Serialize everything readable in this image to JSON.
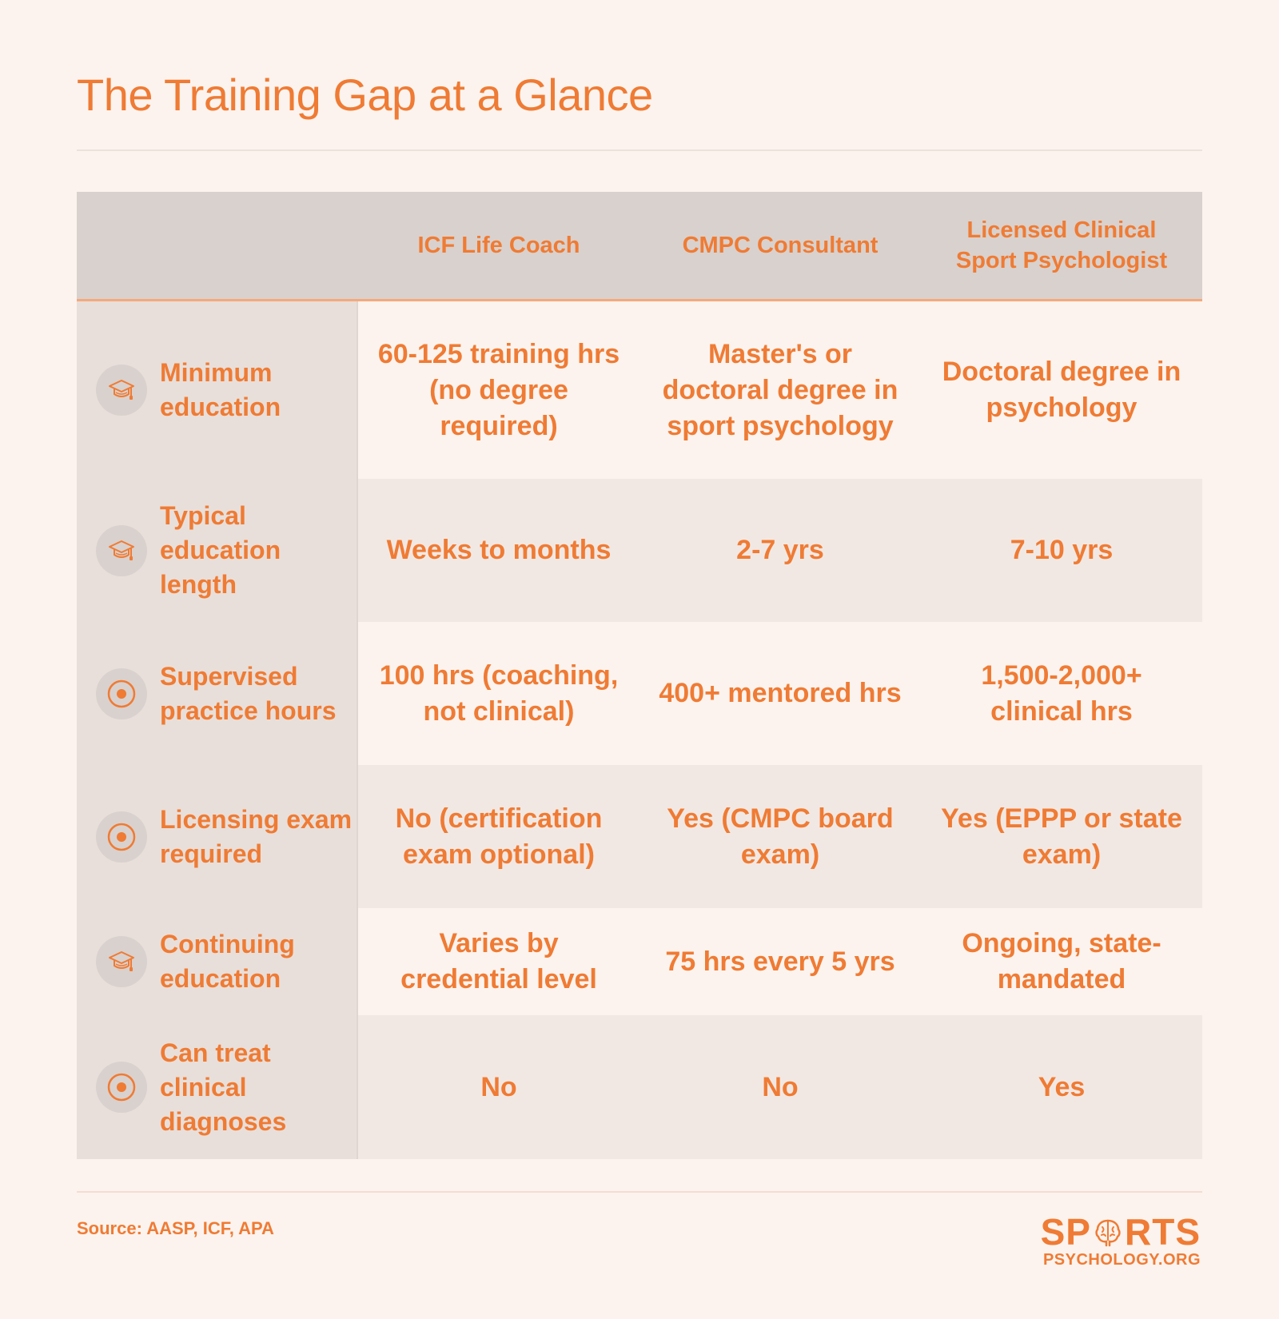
{
  "title": "The Training Gap at a Glance",
  "header": {
    "blank": "",
    "col1": "ICF Life Coach",
    "col2": "CMPC Consultant",
    "col3": "Licensed Clinical Sport Psychologist"
  },
  "rows": [
    {
      "icon": "graduation-cap-icon",
      "label": "Minimum education",
      "c1": "60-125 training hrs (no degree required)",
      "c2": "Master's or doctoral degree in sport psychology",
      "c3": "Doctoral degree in psychology"
    },
    {
      "icon": "graduation-cap-icon",
      "label": "Typical education length",
      "c1": "Weeks to months",
      "c2": "2-7 yrs",
      "c3": "7-10 yrs"
    },
    {
      "icon": "target-icon",
      "label": "Supervised practice hours",
      "c1": "100 hrs (coaching, not clinical)",
      "c2": "400+ mentored hrs",
      "c3": "1,500-2,000+ clinical hrs"
    },
    {
      "icon": "target-icon",
      "label": "Licensing exam required",
      "c1": "No (certification exam optional)",
      "c2": "Yes (CMPC board exam)",
      "c3": "Yes (EPPP or state exam)"
    },
    {
      "icon": "graduation-cap-icon",
      "label": "Continuing education",
      "c1": "Varies by credential level",
      "c2": "75 hrs every 5 yrs",
      "c3": "Ongoing, state-mandated"
    },
    {
      "icon": "target-icon",
      "label": "Can treat clinical diagnoses",
      "c1": "No",
      "c2": "No",
      "c3": "Yes"
    }
  ],
  "source": "Source: AASP, ICF, APA",
  "logo": {
    "main_left": "SP",
    "main_right": "RTS",
    "sub": "PSYCHOLOGY.ORG"
  },
  "colors": {
    "accent": "#ef7b34",
    "background": "#fcf3ee",
    "header_bg": "#d9d1cd",
    "label_bg": "#e8dfda",
    "row_alt_bg": "#f2e8e3"
  }
}
